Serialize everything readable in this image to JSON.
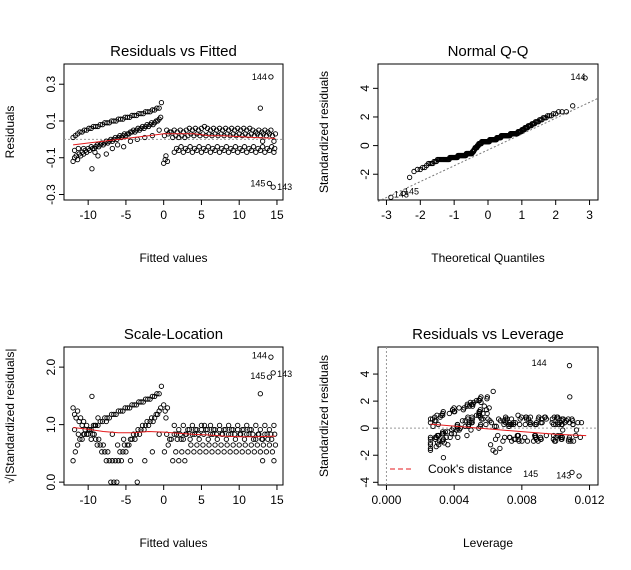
{
  "figure": {
    "layout": "2x2 diagnostic plots"
  },
  "chart_data": [
    {
      "id": "rvf",
      "type": "scatter",
      "title": "Residuals vs Fitted",
      "xlabel": "Fitted values",
      "ylabel": "Residuals",
      "xlim": [
        -13.2,
        15.8
      ],
      "ylim": [
        -0.33,
        0.41
      ],
      "xticks": [
        -10,
        -5,
        0,
        5,
        10,
        15
      ],
      "xtick_labels": [
        "-10",
        "-5",
        "0",
        "5",
        "10",
        "15"
      ],
      "yticks": [
        -0.3,
        -0.1,
        0.1,
        0.3
      ],
      "ytick_labels": [
        "-0.3",
        "-0.1",
        "0.1",
        "0.3"
      ],
      "yrotate": true,
      "annotations": [
        {
          "x": 14.2,
          "y": 0.34,
          "label": "144",
          "pos": "left"
        },
        {
          "x": 14.0,
          "y": -0.24,
          "label": "145",
          "pos": "left"
        },
        {
          "x": 14.5,
          "y": -0.26,
          "label": "143",
          "pos": "right"
        }
      ],
      "points": [
        [
          -12.0,
          -0.12
        ],
        [
          -11.8,
          -0.1
        ],
        [
          -11.6,
          -0.09
        ],
        [
          -11.4,
          -0.11
        ],
        [
          -11.2,
          -0.08
        ],
        [
          -11.0,
          -0.09
        ],
        [
          -10.8,
          -0.07
        ],
        [
          -10.6,
          -0.08
        ],
        [
          -10.4,
          -0.06
        ],
        [
          -10.2,
          -0.07
        ],
        [
          -10.0,
          -0.05
        ],
        [
          -9.8,
          -0.06
        ],
        [
          -9.6,
          -0.04
        ],
        [
          -9.4,
          -0.05
        ],
        [
          -9.2,
          -0.05
        ],
        [
          -9.0,
          -0.04
        ],
        [
          -8.8,
          -0.03
        ],
        [
          -8.6,
          -0.04
        ],
        [
          -8.4,
          -0.03
        ],
        [
          -8.2,
          -0.02
        ],
        [
          -8.0,
          -0.03
        ],
        [
          -7.8,
          -0.02
        ],
        [
          -7.6,
          -0.01
        ],
        [
          -7.4,
          -0.02
        ],
        [
          -7.2,
          -0.01
        ],
        [
          -7.0,
          0.0
        ],
        [
          -6.8,
          -0.01
        ],
        [
          -6.6,
          0.0
        ],
        [
          -6.4,
          0.01
        ],
        [
          -6.2,
          0.0
        ],
        [
          -6.0,
          0.01
        ],
        [
          -5.8,
          0.02
        ],
        [
          -5.6,
          0.01
        ],
        [
          -5.4,
          0.02
        ],
        [
          -5.2,
          0.03
        ],
        [
          -5.0,
          0.02
        ],
        [
          -4.8,
          0.03
        ],
        [
          -4.6,
          0.03
        ],
        [
          -4.4,
          0.04
        ],
        [
          -4.2,
          0.04
        ],
        [
          -4.0,
          0.05
        ],
        [
          -3.8,
          0.04
        ],
        [
          -3.6,
          0.05
        ],
        [
          -3.4,
          0.06
        ],
        [
          -3.2,
          0.05
        ],
        [
          -3.0,
          0.06
        ],
        [
          -2.8,
          0.07
        ],
        [
          -2.6,
          0.06
        ],
        [
          -2.4,
          0.07
        ],
        [
          -2.2,
          0.08
        ],
        [
          -2.0,
          0.07
        ],
        [
          -1.8,
          0.08
        ],
        [
          -1.6,
          0.09
        ],
        [
          -1.4,
          0.08
        ],
        [
          -1.2,
          0.09
        ],
        [
          -1.0,
          0.1
        ],
        [
          -0.8,
          0.1
        ],
        [
          -0.6,
          0.11
        ],
        [
          -0.4,
          0.12
        ],
        [
          -12.0,
          0.01
        ],
        [
          -11.7,
          0.02
        ],
        [
          -11.4,
          0.03
        ],
        [
          -11.1,
          0.04
        ],
        [
          -10.8,
          0.04
        ],
        [
          -10.5,
          0.05
        ],
        [
          -10.2,
          0.05
        ],
        [
          -9.9,
          0.06
        ],
        [
          -9.6,
          0.06
        ],
        [
          -9.3,
          0.07
        ],
        [
          -9.0,
          0.07
        ],
        [
          -8.7,
          0.07
        ],
        [
          -8.4,
          0.08
        ],
        [
          -8.1,
          0.08
        ],
        [
          -7.8,
          0.09
        ],
        [
          -7.5,
          0.09
        ],
        [
          -7.2,
          0.09
        ],
        [
          -6.9,
          0.1
        ],
        [
          -6.6,
          0.1
        ],
        [
          -6.3,
          0.1
        ],
        [
          -6.0,
          0.11
        ],
        [
          -5.7,
          0.11
        ],
        [
          -5.4,
          0.11
        ],
        [
          -5.1,
          0.12
        ],
        [
          -4.8,
          0.12
        ],
        [
          -4.5,
          0.12
        ],
        [
          -4.2,
          0.13
        ],
        [
          -3.9,
          0.13
        ],
        [
          -3.6,
          0.13
        ],
        [
          -3.3,
          0.14
        ],
        [
          -3.0,
          0.14
        ],
        [
          -2.7,
          0.14
        ],
        [
          -2.4,
          0.15
        ],
        [
          -2.1,
          0.15
        ],
        [
          -1.8,
          0.15
        ],
        [
          -1.5,
          0.16
        ],
        [
          -1.2,
          0.16
        ],
        [
          -0.9,
          0.17
        ],
        [
          -0.6,
          0.17
        ],
        [
          -0.3,
          0.2
        ],
        [
          -11.8,
          -0.06
        ],
        [
          -11.3,
          -0.05
        ],
        [
          -10.6,
          -0.05
        ],
        [
          -9.5,
          -0.16
        ],
        [
          -9.1,
          -0.07
        ],
        [
          -8.7,
          -0.09
        ],
        [
          -7.6,
          -0.08
        ],
        [
          -6.8,
          -0.05
        ],
        [
          -6.1,
          -0.03
        ],
        [
          -5.3,
          -0.04
        ],
        [
          -4.4,
          -0.01
        ],
        [
          -3.5,
          0.0
        ],
        [
          -2.5,
          0.01
        ],
        [
          -1.5,
          0.02
        ],
        [
          -0.6,
          0.05
        ],
        [
          0.0,
          -0.13
        ],
        [
          0.2,
          -0.11
        ],
        [
          0.3,
          -0.09
        ],
        [
          0.5,
          -0.12
        ],
        [
          0.1,
          0.02
        ],
        [
          0.4,
          0.05
        ],
        [
          0.6,
          0.03
        ],
        [
          0.8,
          0.04
        ],
        [
          1.0,
          0.04
        ],
        [
          1.4,
          0.05
        ],
        [
          1.8,
          0.04
        ],
        [
          2.2,
          0.05
        ],
        [
          2.6,
          0.04
        ],
        [
          3.0,
          0.05
        ],
        [
          3.4,
          0.06
        ],
        [
          3.8,
          0.05
        ],
        [
          4.2,
          0.06
        ],
        [
          4.6,
          0.05
        ],
        [
          5.0,
          0.06
        ],
        [
          5.4,
          0.07
        ],
        [
          5.8,
          0.06
        ],
        [
          6.2,
          0.05
        ],
        [
          6.6,
          0.06
        ],
        [
          7.0,
          0.05
        ],
        [
          7.4,
          0.06
        ],
        [
          7.8,
          0.05
        ],
        [
          8.2,
          0.06
        ],
        [
          8.6,
          0.05
        ],
        [
          9.0,
          0.06
        ],
        [
          9.4,
          0.05
        ],
        [
          9.8,
          0.06
        ],
        [
          10.2,
          0.05
        ],
        [
          10.6,
          0.06
        ],
        [
          11.0,
          0.05
        ],
        [
          11.4,
          0.06
        ],
        [
          11.8,
          0.05
        ],
        [
          12.2,
          0.04
        ],
        [
          12.6,
          0.05
        ],
        [
          13.0,
          0.04
        ],
        [
          13.4,
          0.05
        ],
        [
          13.8,
          0.04
        ],
        [
          14.2,
          0.05
        ],
        [
          1.2,
          0.01
        ],
        [
          1.6,
          0.02
        ],
        [
          2.0,
          0.01
        ],
        [
          2.4,
          0.02
        ],
        [
          2.8,
          0.01
        ],
        [
          3.2,
          0.02
        ],
        [
          3.6,
          0.03
        ],
        [
          4.0,
          0.02
        ],
        [
          4.4,
          0.03
        ],
        [
          4.8,
          0.02
        ],
        [
          5.2,
          0.03
        ],
        [
          5.6,
          0.02
        ],
        [
          6.0,
          0.03
        ],
        [
          6.4,
          0.02
        ],
        [
          6.8,
          0.03
        ],
        [
          7.2,
          0.02
        ],
        [
          7.6,
          0.03
        ],
        [
          8.0,
          0.02
        ],
        [
          8.4,
          0.03
        ],
        [
          8.8,
          0.02
        ],
        [
          9.2,
          0.03
        ],
        [
          9.6,
          0.02
        ],
        [
          10.0,
          0.03
        ],
        [
          10.4,
          0.02
        ],
        [
          10.8,
          0.03
        ],
        [
          11.2,
          0.02
        ],
        [
          11.6,
          0.03
        ],
        [
          12.0,
          0.02
        ],
        [
          12.4,
          0.03
        ],
        [
          12.8,
          0.02
        ],
        [
          13.2,
          0.03
        ],
        [
          13.6,
          0.02
        ],
        [
          14.0,
          0.03
        ],
        [
          14.4,
          0.02
        ],
        [
          1.4,
          -0.07
        ],
        [
          2.0,
          -0.06
        ],
        [
          2.6,
          -0.07
        ],
        [
          3.2,
          -0.06
        ],
        [
          3.8,
          -0.07
        ],
        [
          4.4,
          -0.06
        ],
        [
          5.0,
          -0.07
        ],
        [
          5.6,
          -0.06
        ],
        [
          6.2,
          -0.07
        ],
        [
          6.8,
          -0.06
        ],
        [
          7.4,
          -0.07
        ],
        [
          8.0,
          -0.06
        ],
        [
          8.6,
          -0.07
        ],
        [
          9.2,
          -0.06
        ],
        [
          9.8,
          -0.07
        ],
        [
          10.4,
          -0.06
        ],
        [
          11.0,
          -0.07
        ],
        [
          11.6,
          -0.06
        ],
        [
          12.2,
          -0.07
        ],
        [
          12.8,
          -0.06
        ],
        [
          13.4,
          -0.07
        ],
        [
          14.0,
          -0.06
        ],
        [
          14.6,
          -0.07
        ],
        [
          1.7,
          -0.05
        ],
        [
          2.3,
          -0.04
        ],
        [
          2.9,
          -0.05
        ],
        [
          3.5,
          -0.04
        ],
        [
          4.1,
          -0.05
        ],
        [
          4.7,
          -0.04
        ],
        [
          5.3,
          -0.05
        ],
        [
          5.9,
          -0.04
        ],
        [
          6.5,
          -0.05
        ],
        [
          7.1,
          -0.04
        ],
        [
          7.7,
          -0.05
        ],
        [
          8.3,
          -0.04
        ],
        [
          8.9,
          -0.05
        ],
        [
          9.5,
          -0.04
        ],
        [
          10.1,
          -0.05
        ],
        [
          10.7,
          -0.04
        ],
        [
          11.3,
          -0.05
        ],
        [
          11.9,
          -0.04
        ],
        [
          12.5,
          -0.05
        ],
        [
          13.1,
          -0.04
        ],
        [
          13.7,
          -0.05
        ],
        [
          14.3,
          -0.04
        ],
        [
          14.7,
          -0.05
        ],
        [
          12.8,
          0.17
        ],
        [
          13.1,
          -0.01
        ],
        [
          14.8,
          0.03
        ],
        [
          14.6,
          -0.01
        ],
        [
          14.2,
          0.34
        ],
        [
          14.0,
          -0.24
        ],
        [
          14.5,
          -0.26
        ]
      ],
      "smooth": [
        [
          -12.0,
          -0.03
        ],
        [
          -10.0,
          -0.02
        ],
        [
          -8.0,
          -0.01
        ],
        [
          -6.0,
          0.0
        ],
        [
          -4.0,
          0.01
        ],
        [
          -2.0,
          0.02
        ],
        [
          0.0,
          0.03
        ],
        [
          2.0,
          0.03
        ],
        [
          4.0,
          0.03
        ],
        [
          6.0,
          0.02
        ],
        [
          8.0,
          0.02
        ],
        [
          10.0,
          0.015
        ],
        [
          12.0,
          0.01
        ],
        [
          14.8,
          0.005
        ]
      ],
      "hline": 0
    },
    {
      "id": "qq",
      "type": "scatter",
      "title": "Normal Q-Q",
      "xlabel": "Theoretical Quantiles",
      "ylabel": "Standardized residuals",
      "xlim": [
        -3.25,
        3.25
      ],
      "ylim": [
        -3.8,
        5.7
      ],
      "xticks": [
        -3,
        -2,
        -1,
        0,
        1,
        2,
        3
      ],
      "xtick_labels": [
        "-3",
        "-2",
        "-1",
        "0",
        "1",
        "2",
        "3"
      ],
      "yticks": [
        -2,
        0,
        2,
        4
      ],
      "ytick_labels": [
        "-2",
        "0",
        "2",
        "4"
      ],
      "yrotate": true,
      "annotations": [
        {
          "x": 3.0,
          "y": 4.8,
          "label": "144",
          "pos": "left"
        },
        {
          "x": -2.6,
          "y": -3.2,
          "label": "145",
          "pos": "right"
        },
        {
          "x": -2.9,
          "y": -3.4,
          "label": "143",
          "pos": "right"
        }
      ],
      "points": [],
      "qq_params": {
        "n": 150
      },
      "refline": [
        [
          -3.25,
          -3.9
        ],
        [
          3.25,
          3.3
        ]
      ]
    },
    {
      "id": "sl",
      "type": "scatter",
      "title": "Scale-Location",
      "xlabel": "Fitted values",
      "ylabel": "√|Standardized residuals|",
      "xlim": [
        -13.2,
        15.8
      ],
      "ylim": [
        -0.05,
        2.35
      ],
      "xticks": [
        -10,
        -5,
        0,
        5,
        10,
        15
      ],
      "xtick_labels": [
        "-10",
        "-5",
        "0",
        "5",
        "10",
        "15"
      ],
      "yticks": [
        0.0,
        1.0,
        2.0
      ],
      "ytick_labels": [
        "0.0",
        "1.0",
        "2.0"
      ],
      "yrotate": true,
      "annotations": [
        {
          "x": 14.2,
          "y": 2.2,
          "label": "144",
          "pos": "left"
        },
        {
          "x": 14.0,
          "y": 1.85,
          "label": "145",
          "pos": "left"
        },
        {
          "x": 14.5,
          "y": 1.88,
          "label": "143",
          "pos": "right"
        }
      ],
      "points": [],
      "smooth": [
        [
          -12.0,
          0.95
        ],
        [
          -10.0,
          0.92
        ],
        [
          -8.0,
          0.88
        ],
        [
          -6.0,
          0.86
        ],
        [
          -4.0,
          0.86
        ],
        [
          -2.0,
          0.88
        ],
        [
          0.0,
          0.87
        ],
        [
          2.0,
          0.85
        ],
        [
          4.0,
          0.83
        ],
        [
          6.0,
          0.82
        ],
        [
          8.0,
          0.8
        ],
        [
          10.0,
          0.79
        ],
        [
          12.0,
          0.79
        ],
        [
          14.8,
          0.8
        ]
      ]
    },
    {
      "id": "rvl",
      "type": "scatter",
      "title": "Residuals vs Leverage",
      "xlabel": "Leverage",
      "ylabel": "Standardized residuals",
      "xlim": [
        -0.0005,
        0.0125
      ],
      "ylim": [
        -4.2,
        6.0
      ],
      "xticks": [
        0.0,
        0.004,
        0.008,
        0.012
      ],
      "xtick_labels": [
        "0.000",
        "0.004",
        "0.008",
        "0.012"
      ],
      "yticks": [
        -4,
        -2,
        0,
        2,
        4
      ],
      "ytick_labels": [
        "-4",
        "-2",
        "0",
        "2",
        "4"
      ],
      "yrotate": true,
      "annotations": [
        {
          "x": 0.0097,
          "y": 4.8,
          "label": "144",
          "pos": "left"
        },
        {
          "x": 0.0092,
          "y": -3.4,
          "label": "145",
          "pos": "left"
        },
        {
          "x": 0.0098,
          "y": -3.5,
          "label": "143",
          "pos": "right"
        }
      ],
      "points": [],
      "smooth": [
        [
          0.0026,
          0.3
        ],
        [
          0.004,
          0.15
        ],
        [
          0.006,
          -0.05
        ],
        [
          0.008,
          -0.25
        ],
        [
          0.01,
          -0.45
        ],
        [
          0.0118,
          -0.55
        ]
      ],
      "legend": {
        "label": "Cook's distance",
        "position": "bottom-left"
      }
    }
  ]
}
